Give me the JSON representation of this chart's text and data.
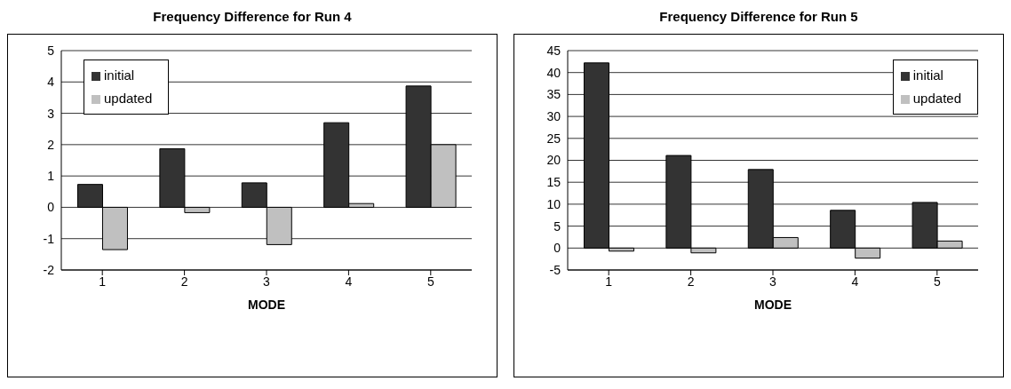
{
  "chart_data": [
    {
      "type": "bar",
      "title": "Frequency Difference for Run 4",
      "xlabel": "MODE",
      "categories": [
        "1",
        "2",
        "3",
        "4",
        "5"
      ],
      "series": [
        {
          "name": "initial",
          "color": "#333333",
          "values": [
            0.73,
            1.87,
            0.78,
            2.7,
            3.87
          ]
        },
        {
          "name": "updated",
          "color": "#c0c0c0",
          "values": [
            -1.35,
            -0.17,
            -1.19,
            0.12,
            2.0
          ]
        }
      ],
      "ylim": [
        -2,
        5
      ],
      "yticks": [
        -2,
        -1,
        0,
        1,
        2,
        3,
        4,
        5
      ],
      "grid": "y",
      "legend": "top left"
    },
    {
      "type": "bar",
      "title": "Frequency Difference for Run 5",
      "xlabel": "MODE",
      "categories": [
        "1",
        "2",
        "3",
        "4",
        "5"
      ],
      "series": [
        {
          "name": "initial",
          "color": "#333333",
          "values": [
            42.2,
            21.1,
            17.9,
            8.6,
            10.4
          ]
        },
        {
          "name": "updated",
          "color": "#c0c0c0",
          "values": [
            -0.7,
            -1.1,
            2.4,
            -2.3,
            1.6
          ]
        }
      ],
      "ylim": [
        -5,
        45
      ],
      "yticks": [
        -5,
        0,
        5,
        10,
        15,
        20,
        25,
        30,
        35,
        40,
        45
      ],
      "grid": "y",
      "legend": "top right"
    }
  ]
}
